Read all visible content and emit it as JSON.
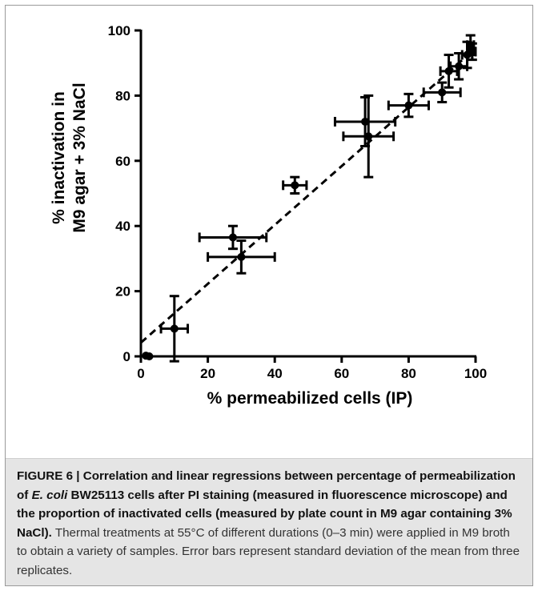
{
  "chart_data": {
    "type": "scatter",
    "xlabel": "% permeabilized cells (IP)",
    "ylabel_lines": [
      "% inactivation in",
      "M9 agar + 3% NaCl"
    ],
    "xlim": [
      0,
      100
    ],
    "ylim": [
      0,
      100
    ],
    "x_ticks": [
      0,
      20,
      40,
      60,
      80,
      100
    ],
    "y_ticks": [
      0,
      20,
      40,
      60,
      80,
      100
    ],
    "points": [
      {
        "x": 1.5,
        "y": 0.2,
        "xerr": 0,
        "yerr": 0
      },
      {
        "x": 2.5,
        "y": 0.0,
        "xerr": 0,
        "yerr": 0
      },
      {
        "x": 10,
        "y": 8.5,
        "xerr": 4,
        "yerr": 10
      },
      {
        "x": 27.5,
        "y": 36.5,
        "xerr": 10,
        "yerr": 3.5
      },
      {
        "x": 30,
        "y": 30.5,
        "xerr": 10,
        "yerr": 5
      },
      {
        "x": 46,
        "y": 52.5,
        "xerr": 3.5,
        "yerr": 2.5
      },
      {
        "x": 67,
        "y": 72,
        "xerr": 9,
        "yerr": 7.5
      },
      {
        "x": 68,
        "y": 67.5,
        "xerr": 7.5,
        "yerr": 12.5
      },
      {
        "x": 80,
        "y": 77,
        "xerr": 6,
        "yerr": 3.5
      },
      {
        "x": 90,
        "y": 81,
        "xerr": 5.5,
        "yerr": 3
      },
      {
        "x": 92,
        "y": 87.5,
        "xerr": 2.5,
        "yerr": 5
      },
      {
        "x": 95,
        "y": 89,
        "xerr": 2.5,
        "yerr": 4
      },
      {
        "x": 97.5,
        "y": 92.5,
        "xerr": 1.5,
        "yerr": 4
      },
      {
        "x": 98.5,
        "y": 95.5,
        "xerr": 1,
        "yerr": 3
      },
      {
        "x": 99,
        "y": 93.5,
        "xerr": 1,
        "yerr": 2.5
      }
    ],
    "regression_line": {
      "style": "dashed",
      "x": [
        0,
        100
      ],
      "y": [
        4.2,
        94.5
      ]
    }
  },
  "caption": {
    "label": "FIGURE 6 | ",
    "bold_part1": "Correlation and linear regressions between percentage of permeabilization of ",
    "bold_italic": "E. coli",
    "bold_part2": " BW25113 cells after PI staining (measured in fluorescence microscope) and the proportion of inactivated cells (measured by plate count in M9 agar containing 3% NaCl).",
    "regular": " Thermal treatments at 55°C of different durations (0–3 min) were applied in M9 broth to obtain a variety of samples. Error bars represent standard deviation of the mean from three replicates."
  }
}
